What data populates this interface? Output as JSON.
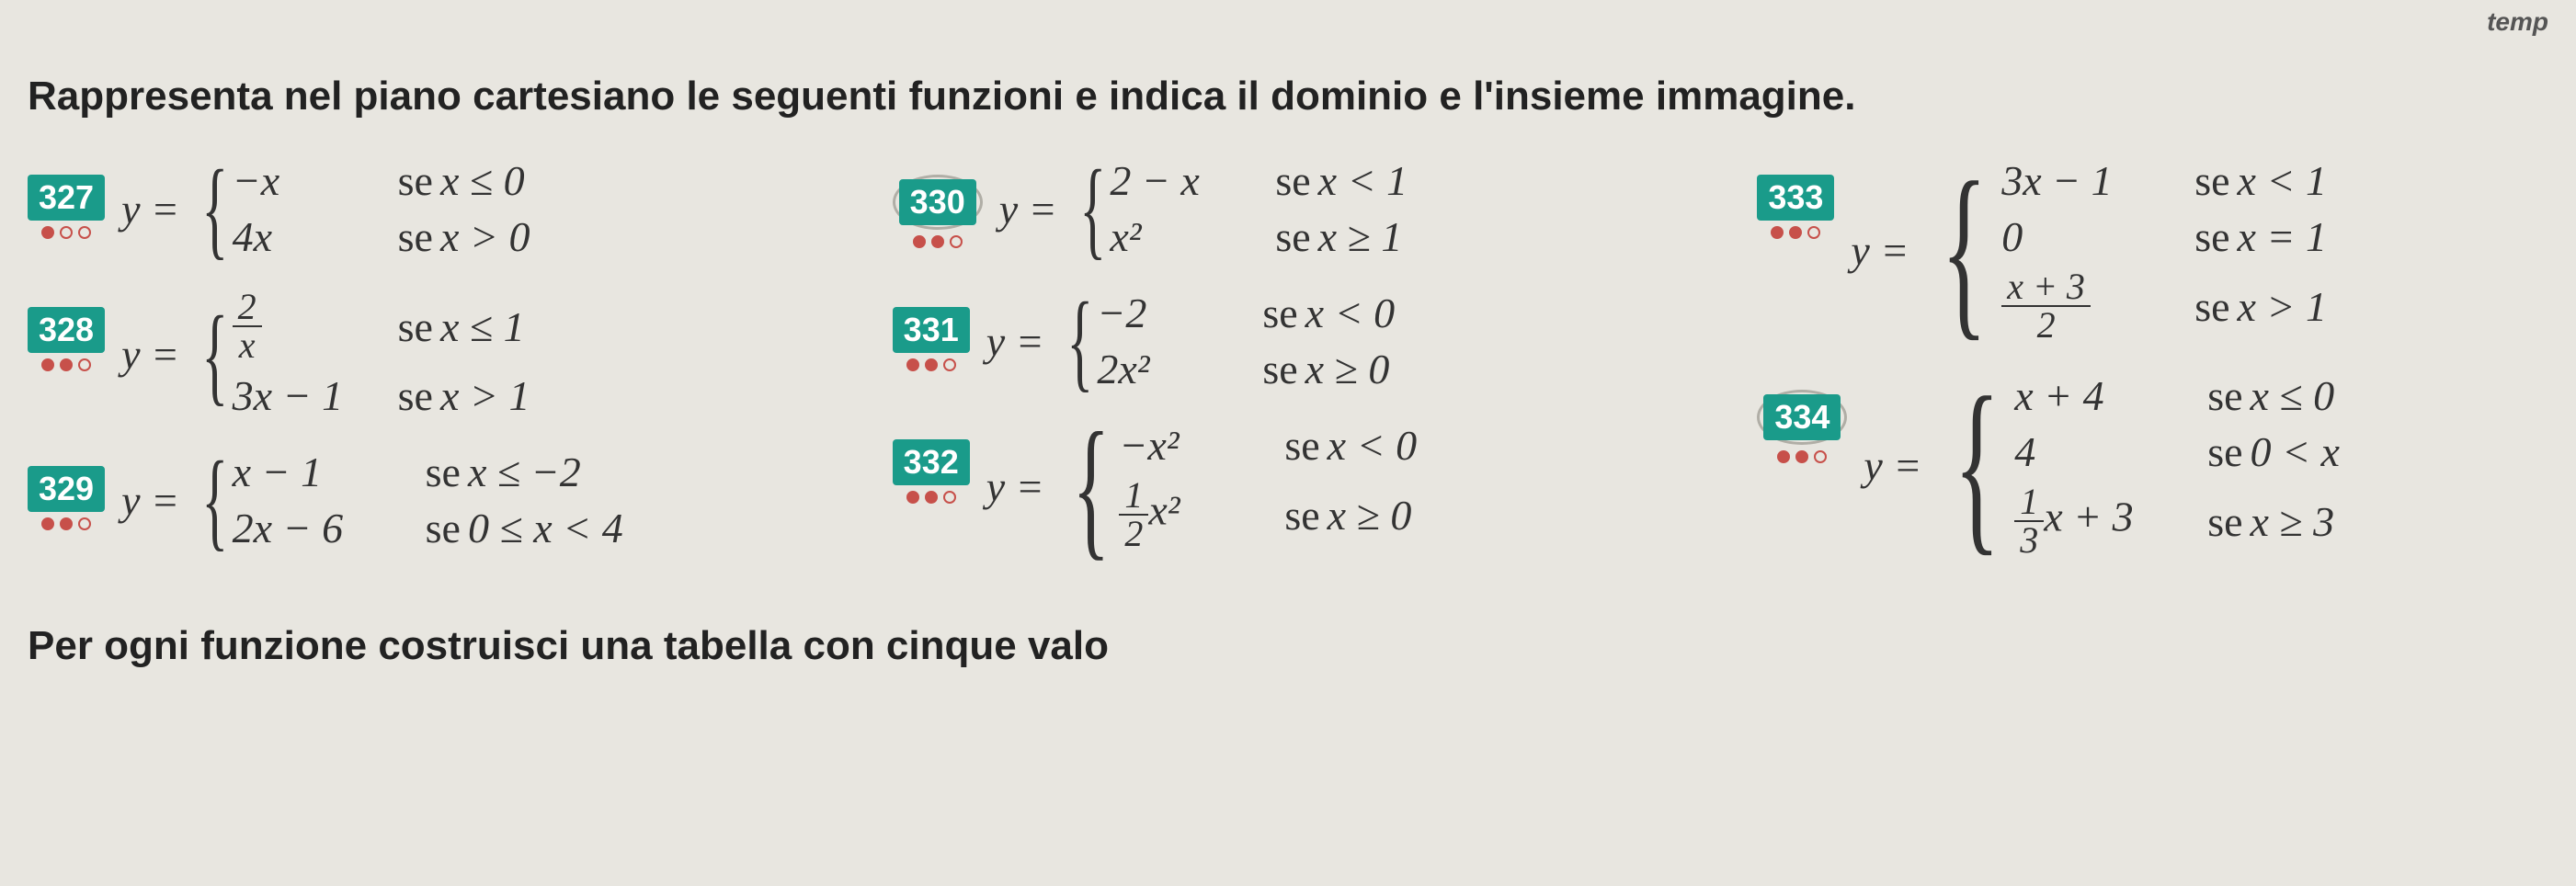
{
  "top_label": "temp",
  "instruction": "Rappresenta nel piano cartesiano le seguenti funzioni e indica il dominio e l'insieme immagine.",
  "bottom_text": "Per ogni funzione costruisci una tabella con cinque valo",
  "badge_color": "#1a9b8a",
  "dot_color": "#c7504a",
  "bg_color": "#e8e6e0",
  "problems": {
    "p327": {
      "num": "327",
      "dots": [
        true,
        false,
        false
      ],
      "cases": [
        {
          "piece": "−x",
          "cond_se": "se",
          "cond": "x ≤ 0"
        },
        {
          "piece": "4x",
          "cond_se": "se",
          "cond": "x > 0"
        }
      ]
    },
    "p328": {
      "num": "328",
      "dots": [
        true,
        true,
        false
      ],
      "cases": [
        {
          "piece_frac": {
            "num": "2",
            "den": "x"
          },
          "cond_se": "se",
          "cond": "x ≤ 1"
        },
        {
          "piece": "3x − 1",
          "cond_se": "se",
          "cond": "x > 1"
        }
      ]
    },
    "p329": {
      "num": "329",
      "dots": [
        true,
        true,
        false
      ],
      "cases": [
        {
          "piece": "x − 1",
          "cond_se": "se",
          "cond": "x ≤ −2"
        },
        {
          "piece": "2x − 6",
          "cond_se": "se",
          "cond": "0 ≤ x < 4"
        }
      ]
    },
    "p330": {
      "num": "330",
      "dots": [
        true,
        true,
        false
      ],
      "circled": true,
      "cases": [
        {
          "piece": "2 − x",
          "cond_se": "se",
          "cond": "x < 1"
        },
        {
          "piece": "x²",
          "cond_se": "se",
          "cond": "x ≥ 1"
        }
      ]
    },
    "p331": {
      "num": "331",
      "dots": [
        true,
        true,
        false
      ],
      "cases": [
        {
          "piece": "−2",
          "cond_se": "se",
          "cond": "x < 0"
        },
        {
          "piece": "2x²",
          "cond_se": "se",
          "cond": "x ≥ 0"
        }
      ]
    },
    "p332": {
      "num": "332",
      "dots": [
        true,
        true,
        false
      ],
      "cases": [
        {
          "piece": "−x²",
          "cond_se": "se",
          "cond": "x < 0"
        },
        {
          "piece_frac_coef": {
            "num": "1",
            "den": "2",
            "rest": "x²"
          },
          "cond_se": "se",
          "cond": "x ≥ 0"
        }
      ]
    },
    "p333": {
      "num": "333",
      "dots": [
        true,
        true,
        false
      ],
      "cases": [
        {
          "piece": "3x − 1",
          "cond_se": "se",
          "cond": "x < 1"
        },
        {
          "piece": "0",
          "cond_se": "se",
          "cond": "x = 1"
        },
        {
          "piece_frac": {
            "num": "x + 3",
            "den": "2"
          },
          "cond_se": "se",
          "cond": "x > 1"
        }
      ]
    },
    "p334": {
      "num": "334",
      "dots": [
        true,
        true,
        false
      ],
      "circled": true,
      "cases": [
        {
          "piece": "x + 4",
          "cond_se": "se",
          "cond": "x ≤ 0"
        },
        {
          "piece": "4",
          "cond_se": "se",
          "cond": "0 < x"
        },
        {
          "piece_frac_coef": {
            "num": "1",
            "den": "3",
            "rest": "x + 3"
          },
          "cond_se": "se",
          "cond": "x ≥ 3"
        }
      ]
    }
  }
}
